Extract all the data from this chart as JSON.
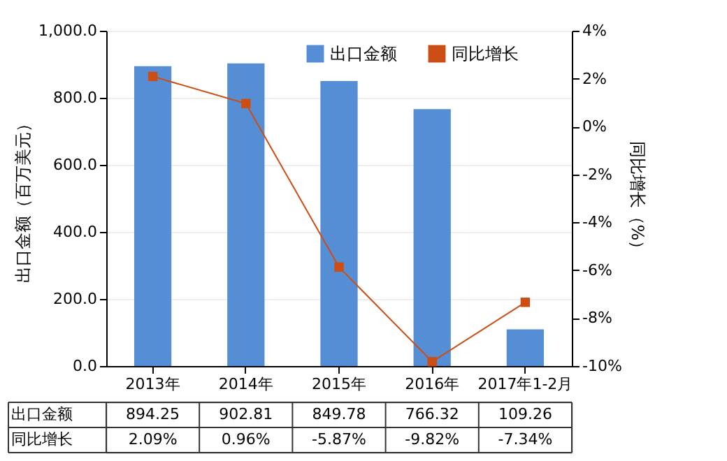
{
  "chart_data": {
    "type": "bar",
    "categories": [
      "2013年",
      "2014年",
      "2015年",
      "2016年",
      "2017年1-2月"
    ],
    "ylabel": "出口金额（百万美元）",
    "y2label": "同比增长（%）",
    "series": [
      {
        "name": "出口金额",
        "color": "#558ed5",
        "values": [
          894.25,
          902.81,
          849.78,
          766.32,
          109.26
        ],
        "value_labels": [
          "894.25",
          "902.81",
          "849.78",
          "766.32",
          "109.26"
        ]
      },
      {
        "name": "同比增长",
        "type": "line",
        "axis": "y2",
        "color": "#cc4e14",
        "marker": "square",
        "values": [
          2.09,
          0.96,
          -5.87,
          -9.82,
          -7.34
        ],
        "value_labels": [
          "2.09%",
          "0.96%",
          "-5.87%",
          "-9.82%",
          "-7.34%"
        ]
      }
    ],
    "ylim": [
      0,
      1000
    ],
    "yticks": [
      {
        "value": 0,
        "label": "0.0"
      },
      {
        "value": 200,
        "label": "200.0"
      },
      {
        "value": 400,
        "label": "400.0"
      },
      {
        "value": 600,
        "label": "600.0"
      },
      {
        "value": 800,
        "label": "800.0"
      },
      {
        "value": 1000,
        "label": "1,000.0"
      }
    ],
    "y2lim": [
      -10,
      4
    ],
    "y2ticks": [
      {
        "value": -10,
        "label": "-10%"
      },
      {
        "value": -8,
        "label": "-8%"
      },
      {
        "value": -6,
        "label": "-6%"
      },
      {
        "value": -4,
        "label": "-4%"
      },
      {
        "value": -2,
        "label": "-2%"
      },
      {
        "value": 0,
        "label": "0%"
      },
      {
        "value": 2,
        "label": "2%"
      },
      {
        "value": 4,
        "label": "4%"
      }
    ],
    "grid": "y",
    "legend": "top right"
  }
}
